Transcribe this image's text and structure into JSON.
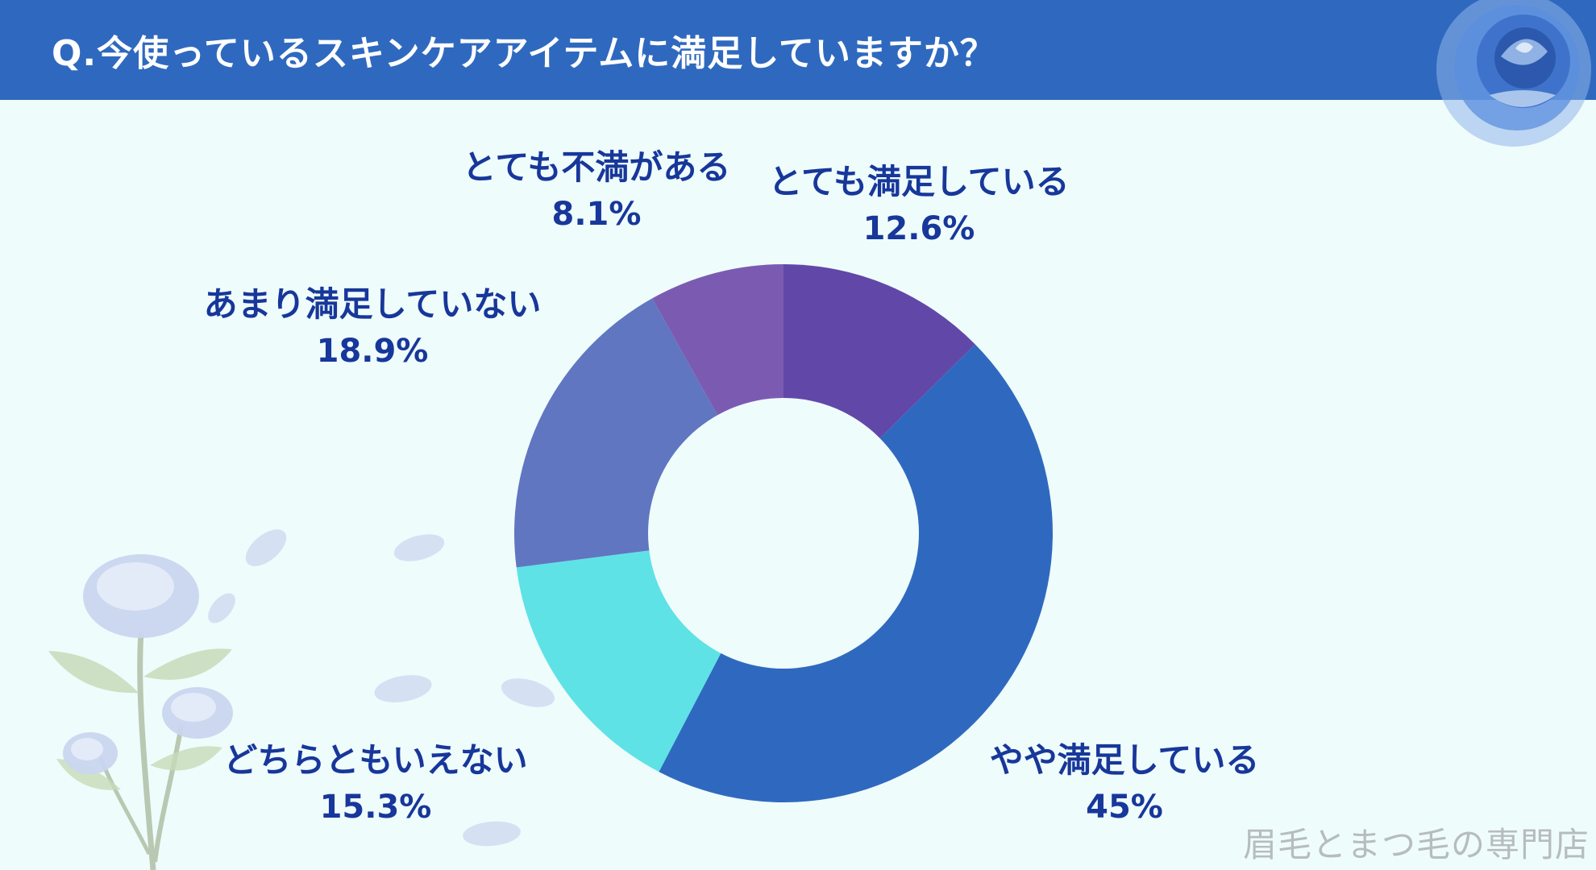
{
  "header": {
    "title": "Q.今使っているスキンケアアイテムに満足していますか？"
  },
  "watermark": "眉毛とまつ毛の専門店",
  "colors": {
    "header_bg": "#2f69bf",
    "background": "#effcfc",
    "label_text": "#17379a"
  },
  "chart_data": {
    "type": "donut",
    "title": "",
    "slices": [
      {
        "label": "とても満足している",
        "value": 12.6,
        "display": "12.6%",
        "color": "#6148a8"
      },
      {
        "label": "やや満足している",
        "value": 45,
        "display": "45%",
        "color": "#2f69bf"
      },
      {
        "label": "どちらともいえない",
        "value": 15.3,
        "display": "15.3%",
        "color": "#5fe2e6"
      },
      {
        "label": "あまり満足していない",
        "value": 18.9,
        "display": "18.9%",
        "color": "#6076c0"
      },
      {
        "label": "とても不満がある",
        "value": 8.1,
        "display": "8.1%",
        "color": "#7b5bb2"
      }
    ],
    "start": "top",
    "direction": "clockwise"
  },
  "decorations": {
    "top_right": "blue-rose-illustration",
    "bottom_left": "pale-blue-roses-illustration"
  }
}
